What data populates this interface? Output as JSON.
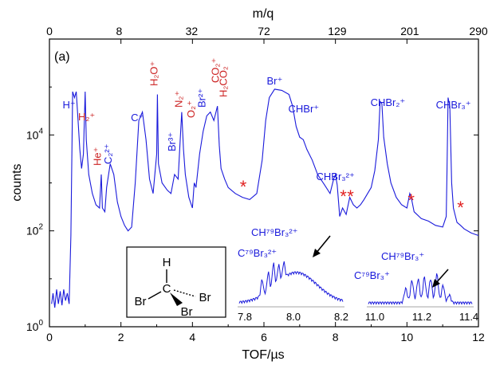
{
  "chart_data": {
    "type": "line",
    "panel_label": "(a)",
    "xlabel": "TOF/µs",
    "ylabel": "counts",
    "top_axis_label": "m/q",
    "xlim": [
      0,
      12
    ],
    "ylim": [
      1,
      1000000
    ],
    "yscale": "log",
    "grid": false,
    "x_ticks": [
      "0",
      "2",
      "4",
      "6",
      "8",
      "10",
      "12"
    ],
    "x_tick_values": [
      0,
      2,
      4,
      6,
      8,
      10,
      12
    ],
    "y_ticks": [
      {
        "value": 1,
        "base": "10",
        "exp": "0"
      },
      {
        "value": 100,
        "base": "10",
        "exp": "2"
      },
      {
        "value": 10000,
        "base": "10",
        "exp": "4"
      }
    ],
    "top_ticks": [
      {
        "label": "0",
        "x": 0.0
      },
      {
        "label": "8",
        "x": 1.95
      },
      {
        "label": "32",
        "x": 3.98
      },
      {
        "label": "72",
        "x": 6.0
      },
      {
        "label": "129",
        "x": 8.05
      },
      {
        "label": "201",
        "x": 10.08
      },
      {
        "label": "290",
        "x": 12.0
      }
    ],
    "series": [
      {
        "color": "#1a1adb",
        "points": [
          [
            0.06,
            3
          ],
          [
            0.1,
            5
          ],
          [
            0.15,
            2.5
          ],
          [
            0.2,
            6
          ],
          [
            0.25,
            3
          ],
          [
            0.3,
            5.5
          ],
          [
            0.35,
            2.8
          ],
          [
            0.4,
            6
          ],
          [
            0.45,
            3.5
          ],
          [
            0.5,
            5
          ],
          [
            0.55,
            3
          ],
          [
            0.6,
            80
          ],
          [
            0.65,
            80000
          ],
          [
            0.7,
            60000
          ],
          [
            0.75,
            80000
          ],
          [
            0.8,
            20000
          ],
          [
            0.85,
            5000
          ],
          [
            0.9,
            2000
          ],
          [
            0.95,
            4000
          ],
          [
            1.0,
            80000
          ],
          [
            1.03,
            8000
          ],
          [
            1.1,
            1500
          ],
          [
            1.2,
            600
          ],
          [
            1.3,
            350
          ],
          [
            1.4,
            300
          ],
          [
            1.45,
            1500
          ],
          [
            1.48,
            300
          ],
          [
            1.55,
            250
          ],
          [
            1.6,
            800
          ],
          [
            1.7,
            2500
          ],
          [
            1.8,
            1500
          ],
          [
            1.9,
            400
          ],
          [
            2.0,
            200
          ],
          [
            2.1,
            130
          ],
          [
            2.2,
            100
          ],
          [
            2.3,
            120
          ],
          [
            2.4,
            1000
          ],
          [
            2.5,
            20000
          ],
          [
            2.6,
            30000
          ],
          [
            2.7,
            8000
          ],
          [
            2.8,
            1200
          ],
          [
            2.9,
            600
          ],
          [
            3.0,
            4000
          ],
          [
            3.02,
            70000
          ],
          [
            3.05,
            2500
          ],
          [
            3.15,
            1000
          ],
          [
            3.3,
            700
          ],
          [
            3.4,
            600
          ],
          [
            3.5,
            1500
          ],
          [
            3.6,
            1200
          ],
          [
            3.65,
            6000
          ],
          [
            3.7,
            30000
          ],
          [
            3.75,
            5000
          ],
          [
            3.8,
            1500
          ],
          [
            3.9,
            500
          ],
          [
            4.0,
            300
          ],
          [
            4.05,
            1000
          ],
          [
            4.1,
            800
          ],
          [
            4.2,
            4000
          ],
          [
            4.3,
            12000
          ],
          [
            4.4,
            25000
          ],
          [
            4.5,
            30000
          ],
          [
            4.6,
            20000
          ],
          [
            4.7,
            40000
          ],
          [
            4.75,
            6000
          ],
          [
            4.8,
            2000
          ],
          [
            4.9,
            1200
          ],
          [
            5.0,
            800
          ],
          [
            5.2,
            600
          ],
          [
            5.4,
            500
          ],
          [
            5.6,
            450
          ],
          [
            5.8,
            600
          ],
          [
            5.95,
            3000
          ],
          [
            6.05,
            20000
          ],
          [
            6.15,
            60000
          ],
          [
            6.3,
            90000
          ],
          [
            6.5,
            85000
          ],
          [
            6.7,
            70000
          ],
          [
            6.8,
            40000
          ],
          [
            6.9,
            15000
          ],
          [
            7.0,
            9000
          ],
          [
            7.1,
            8000
          ],
          [
            7.2,
            5000
          ],
          [
            7.35,
            3000
          ],
          [
            7.5,
            1500
          ],
          [
            7.7,
            900
          ],
          [
            7.85,
            600
          ],
          [
            7.95,
            1200
          ],
          [
            8.0,
            1500
          ],
          [
            8.05,
            900
          ],
          [
            8.12,
            200
          ],
          [
            8.2,
            300
          ],
          [
            8.3,
            220
          ],
          [
            8.4,
            500
          ],
          [
            8.5,
            350
          ],
          [
            8.6,
            300
          ],
          [
            8.7,
            350
          ],
          [
            8.8,
            450
          ],
          [
            8.9,
            600
          ],
          [
            9.0,
            800
          ],
          [
            9.1,
            1800
          ],
          [
            9.2,
            8000
          ],
          [
            9.25,
            50000
          ],
          [
            9.3,
            45000
          ],
          [
            9.35,
            9000
          ],
          [
            9.45,
            2500
          ],
          [
            9.55,
            1000
          ],
          [
            9.7,
            500
          ],
          [
            9.85,
            350
          ],
          [
            10.0,
            300
          ],
          [
            10.08,
            600
          ],
          [
            10.12,
            500
          ],
          [
            10.2,
            250
          ],
          [
            10.4,
            180
          ],
          [
            10.6,
            160
          ],
          [
            10.8,
            130
          ],
          [
            11.0,
            120
          ],
          [
            11.1,
            200
          ],
          [
            11.12,
            1500
          ],
          [
            11.15,
            60000
          ],
          [
            11.2,
            40000
          ],
          [
            11.25,
            1000
          ],
          [
            11.3,
            300
          ],
          [
            11.4,
            150
          ],
          [
            11.5,
            130
          ],
          [
            11.6,
            110
          ],
          [
            11.8,
            90
          ],
          [
            12.0,
            80
          ]
        ]
      }
    ],
    "annotations": [
      {
        "text": "H⁺",
        "x": 0.66,
        "color": "#1a1adb"
      },
      {
        "text": "H₂⁺",
        "x": 1.04,
        "color": "#cc2222"
      },
      {
        "text": "He⁺",
        "x": 1.44,
        "color": "#cc2222"
      },
      {
        "text": "C₂²⁺",
        "x": 1.74,
        "color": "#1a1adb"
      },
      {
        "text": "C⁺",
        "x": 2.46,
        "color": "#1a1adb"
      },
      {
        "text": "H₂O⁺",
        "x": 3.02,
        "color": "#cc2222"
      },
      {
        "text": "Br³⁺",
        "x": 3.52,
        "color": "#1a1adb"
      },
      {
        "text": "N₂⁺",
        "x": 3.71,
        "color": "#cc2222"
      },
      {
        "text": "O₂⁺",
        "x": 4.06,
        "color": "#cc2222"
      },
      {
        "text": "Br²⁺",
        "x": 4.36,
        "color": "#1a1adb"
      },
      {
        "text": "CO₂⁺",
        "x": 4.74,
        "color": "#cc2222"
      },
      {
        "text": "H₂CO₂",
        "x": 4.74,
        "color": "#cc2222"
      },
      {
        "text": "Br⁺",
        "x": 6.3,
        "color": "#1a1adb"
      },
      {
        "text": "CHBr⁺",
        "x": 6.8,
        "color": "#1a1adb"
      },
      {
        "text": "CHBr₃²⁺",
        "x": 8.0,
        "color": "#1a1adb"
      },
      {
        "text": "CHBr₂⁺",
        "x": 9.2,
        "color": "#1a1adb"
      },
      {
        "text": "CHBr₃⁺",
        "x": 11.3,
        "color": "#1a1adb"
      }
    ],
    "stars": [
      5.42,
      8.22,
      8.42,
      10.12,
      11.5
    ],
    "inset_left": {
      "xlim": [
        7.8,
        8.2
      ],
      "x_ticks": [
        "7.8",
        "8.0",
        "8.2"
      ],
      "labels": [
        "C⁷⁹Br₃²⁺",
        "CH⁷⁹Br₃²⁺"
      ]
    },
    "inset_right": {
      "xlim": [
        11.0,
        11.4
      ],
      "x_ticks": [
        "11.0",
        "11.2",
        "11.4"
      ],
      "labels": [
        "CH⁷⁹Br₃⁺",
        "C⁷⁹Br₃⁺"
      ]
    },
    "molecule": {
      "atoms": [
        "H",
        "C",
        "Br",
        "Br",
        "Br"
      ]
    }
  }
}
